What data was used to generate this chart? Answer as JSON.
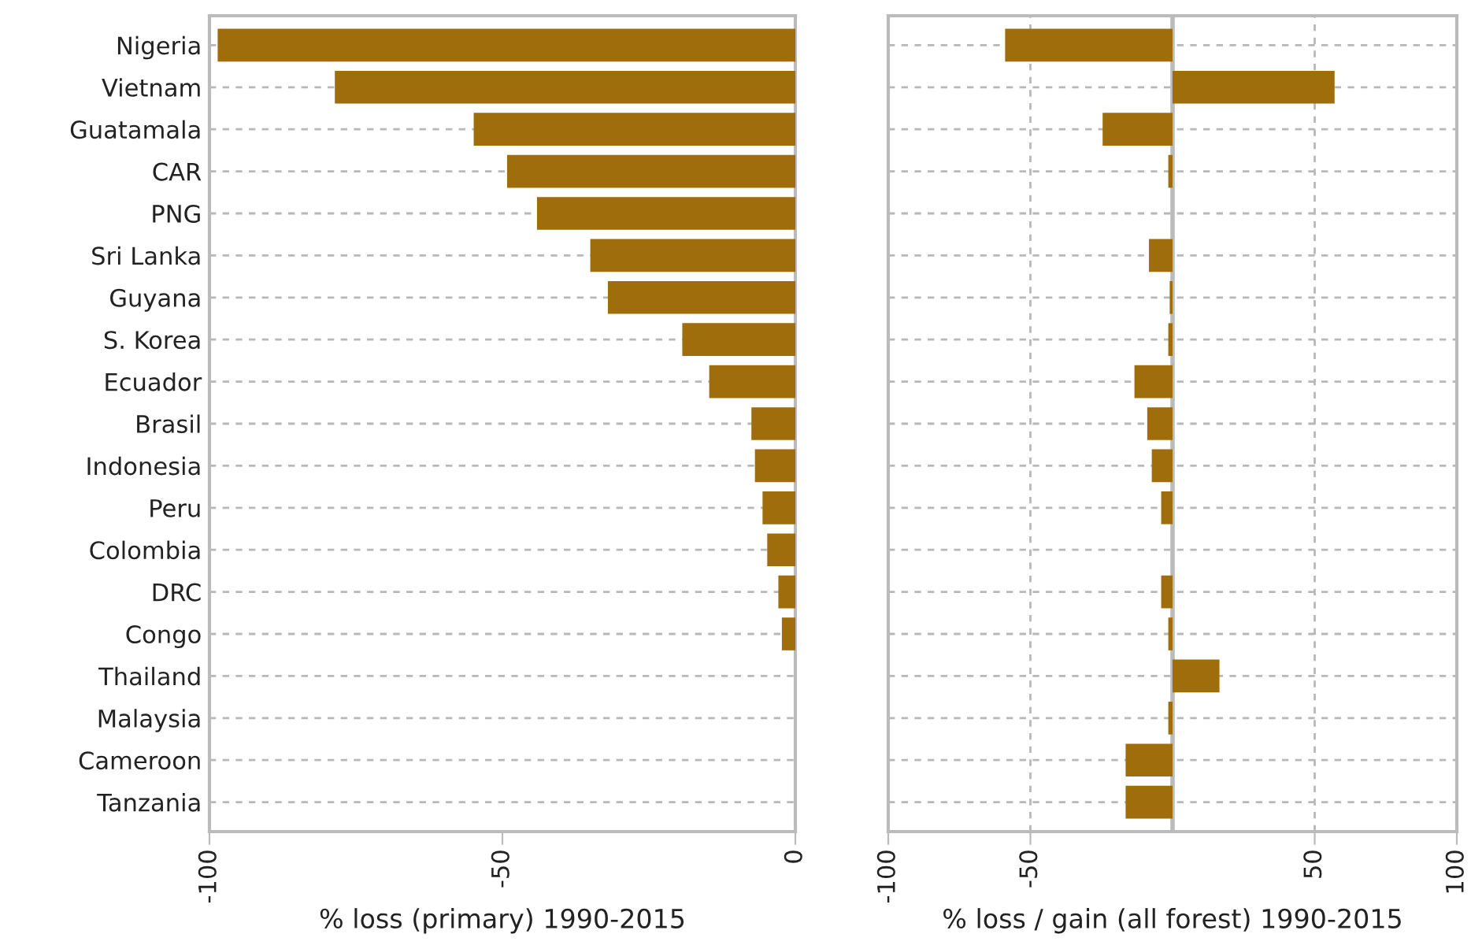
{
  "chart_data": [
    {
      "type": "bar",
      "orientation": "horizontal",
      "xlabel": "% loss (primary) 1990-2015",
      "categories": [
        "Nigeria",
        "Vietnam",
        "Guatamala",
        "CAR",
        "PNG",
        "Sri Lanka",
        "Guyana",
        "S. Korea",
        "Ecuador",
        "Brasil",
        "Indonesia",
        "Peru",
        "Colombia",
        "DRC",
        "Congo",
        "Thailand",
        "Malaysia",
        "Cameroon",
        "Tanzania"
      ],
      "series": [
        {
          "color": "#a06d0c",
          "values": [
            -98.6,
            -78.6,
            -54.9,
            -49.2,
            -44.1,
            -35.0,
            -32.0,
            -19.3,
            -14.7,
            -7.5,
            -6.9,
            -5.6,
            -4.8,
            -2.9,
            -2.3,
            null,
            null,
            null,
            null
          ]
        }
      ],
      "xlim": [
        -100,
        0
      ],
      "xticks": [
        -100,
        -50,
        0
      ],
      "grid": "y"
    },
    {
      "type": "bar",
      "orientation": "horizontal",
      "xlabel": "% loss / gain (all forest) 1990-2015",
      "categories": [
        null,
        null,
        null,
        null,
        null,
        null,
        null,
        null,
        null,
        null,
        null,
        null,
        null,
        null,
        null,
        null,
        null,
        null,
        null
      ],
      "series": [
        {
          "color": "#a06d0c",
          "values": [
            -58.9,
            57.0,
            -24.6,
            -1.5,
            null,
            -8.3,
            -1.0,
            -1.5,
            -13.4,
            -8.9,
            -7.3,
            -4.0,
            null,
            -4.0,
            -1.5,
            16.5,
            -1.5,
            -16.5,
            -16.5
          ]
        }
      ],
      "xlim": [
        -100,
        100
      ],
      "xticks": [
        -100,
        -50,
        50,
        100
      ],
      "grid": true,
      "tick_labels": "x",
      "ref_lines": [
        {
          "axis": "x",
          "value": 0,
          "color": "#bbbbbb",
          "line_style": "solid"
        }
      ]
    }
  ]
}
